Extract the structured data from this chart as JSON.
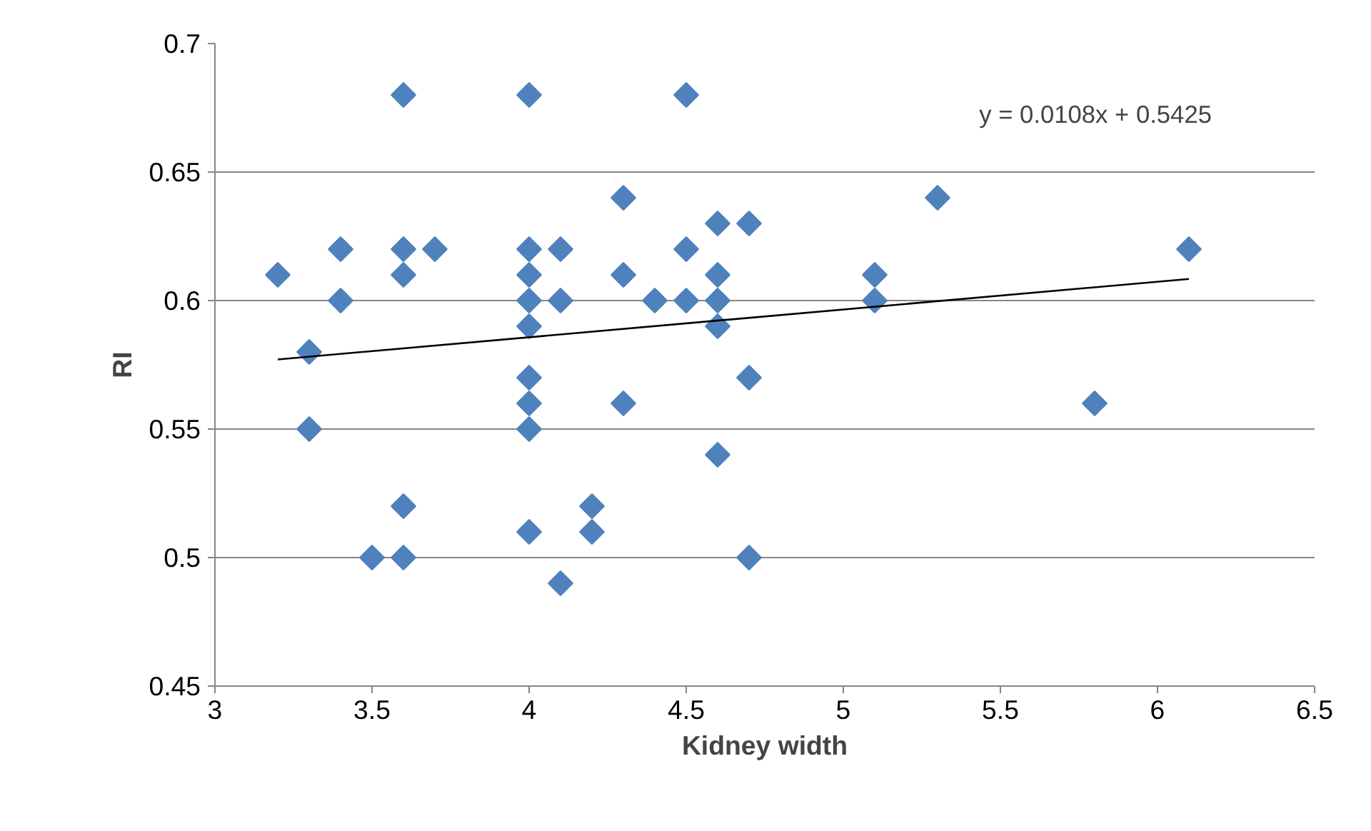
{
  "chart_data": {
    "type": "scatter",
    "xlabel": "Kidney width",
    "ylabel": "RI",
    "xlim": [
      3,
      6.5
    ],
    "ylim": [
      0.45,
      0.7
    ],
    "xticks": [
      3,
      3.5,
      4,
      4.5,
      5,
      5.5,
      6,
      6.5
    ],
    "yticks": [
      0.45,
      0.5,
      0.55,
      0.6,
      0.65,
      0.7
    ],
    "grid": "y",
    "marker": "diamond",
    "annotations": [
      "y = 0.0108x + 0.5425"
    ],
    "series": [
      {
        "color": "#4f81bd",
        "x": [
          3.2,
          3.3,
          3.3,
          3.4,
          3.4,
          3.5,
          3.6,
          3.6,
          3.6,
          3.6,
          3.6,
          3.7,
          4.0,
          4.0,
          4.0,
          4.0,
          4.0,
          4.0,
          4.0,
          4.0,
          4.0,
          4.1,
          4.1,
          4.1,
          4.2,
          4.2,
          4.3,
          4.3,
          4.3,
          4.4,
          4.5,
          4.5,
          4.5,
          4.6,
          4.6,
          4.6,
          4.6,
          4.6,
          4.7,
          4.7,
          4.7,
          5.1,
          5.1,
          5.3,
          5.8,
          6.1
        ],
        "values": [
          0.61,
          0.58,
          0.55,
          0.62,
          0.6,
          0.5,
          0.68,
          0.62,
          0.61,
          0.52,
          0.5,
          0.62,
          0.68,
          0.62,
          0.61,
          0.6,
          0.59,
          0.57,
          0.56,
          0.55,
          0.51,
          0.62,
          0.6,
          0.49,
          0.52,
          0.51,
          0.64,
          0.61,
          0.56,
          0.6,
          0.68,
          0.62,
          0.6,
          0.63,
          0.61,
          0.6,
          0.59,
          0.54,
          0.63,
          0.57,
          0.5,
          0.61,
          0.6,
          0.64,
          0.56,
          0.62
        ]
      },
      {
        "type": "line",
        "marker": "none",
        "color": "#000000",
        "x": [
          3.2,
          6.1
        ],
        "values": [
          0.5771,
          0.6084
        ]
      }
    ]
  }
}
